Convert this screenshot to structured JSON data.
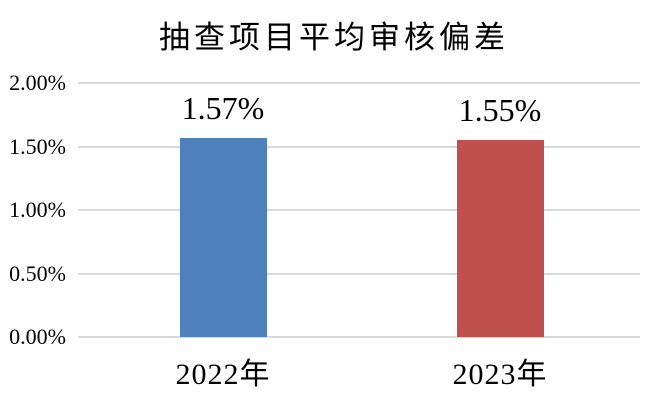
{
  "chart_data": {
    "type": "bar",
    "title": "抽查项目平均审核偏差",
    "categories": [
      "2022年",
      "2023年"
    ],
    "values": [
      1.57,
      1.55
    ],
    "value_labels": [
      "1.57%",
      "1.55%"
    ],
    "bar_colors": [
      "#4F81BD",
      "#C0504D"
    ],
    "xlabel": "",
    "ylabel": "",
    "ylim": [
      0,
      2.0
    ],
    "ytick_values": [
      0,
      0.5,
      1.0,
      1.5,
      2.0
    ],
    "ytick_labels": [
      "0.00%",
      "0.50%",
      "1.00%",
      "1.50%",
      "2.00%"
    ],
    "grid": "horizontal",
    "legend": "none",
    "colors": {
      "background": "#FFFFFF",
      "gridline": "#D9D9D9",
      "text": "#000000",
      "bar_2022": "#4F81BD",
      "bar_2023": "#C0504D"
    }
  }
}
